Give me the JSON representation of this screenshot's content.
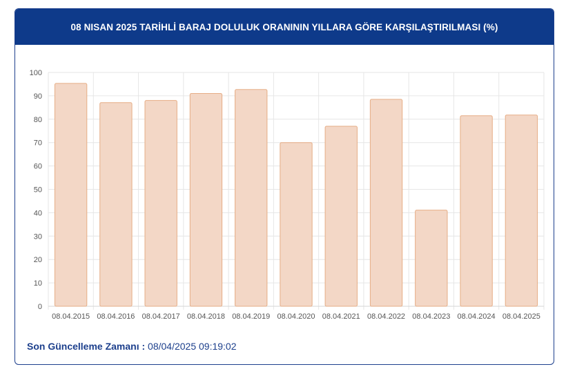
{
  "header": {
    "title": "08 NISAN 2025 TARİHLİ BARAJ DOLULUK ORANININ YILLARA GÖRE KARŞILAŞTIRILMASI (%)"
  },
  "footer": {
    "label": "Son Güncelleme Zamanı :",
    "value": "08/04/2025 09:19:02"
  },
  "colors": {
    "header_bg": "#0e3a8a",
    "bar_fill": "#f3d7c6",
    "bar_stroke": "#e6ad85",
    "grid": "#e6e6e6",
    "text": "#555555"
  },
  "chart_data": {
    "type": "bar",
    "categories": [
      "08.04.2015",
      "08.04.2016",
      "08.04.2017",
      "08.04.2018",
      "08.04.2019",
      "08.04.2020",
      "08.04.2021",
      "08.04.2022",
      "08.04.2023",
      "08.04.2024",
      "08.04.2025"
    ],
    "values": [
      95.3,
      87.1,
      88.0,
      91.0,
      92.7,
      70.0,
      77.0,
      88.5,
      41.1,
      81.5,
      81.8
    ],
    "ylim": [
      0,
      100
    ],
    "yticks": [
      0,
      10,
      20,
      30,
      40,
      50,
      60,
      70,
      80,
      90,
      100
    ],
    "grid": true,
    "legend": false
  }
}
